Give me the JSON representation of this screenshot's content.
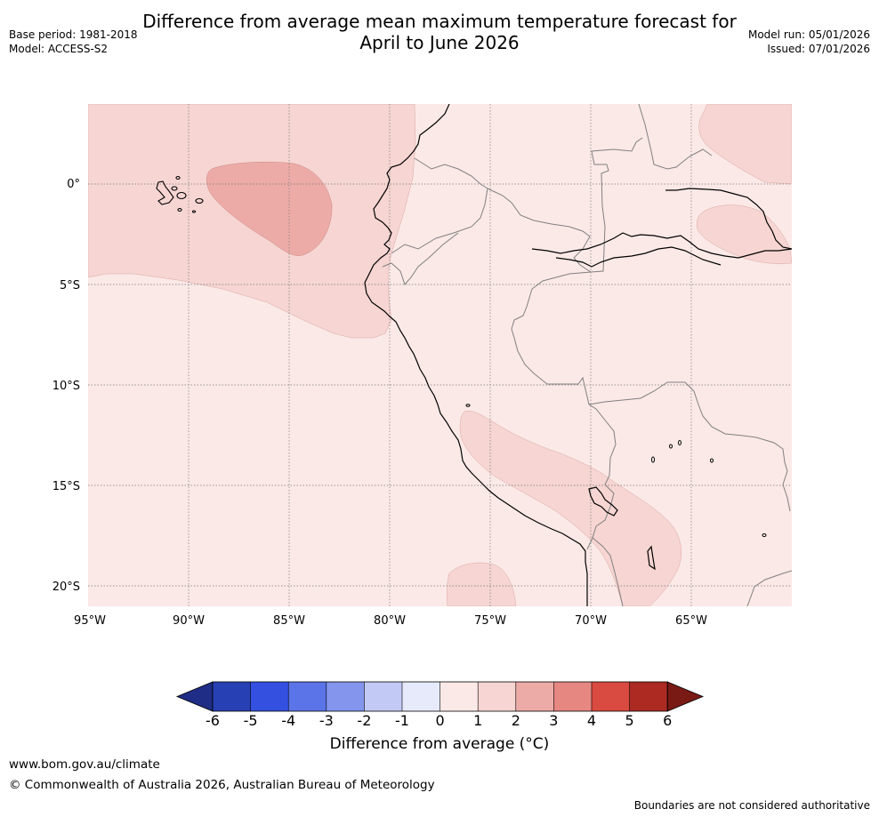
{
  "title": {
    "line1": "Difference from average mean maximum temperature forecast for",
    "line2": "April to June 2026"
  },
  "meta_left": {
    "base_period": "Base period: 1981-2018",
    "model": "Model: ACCESS-S2"
  },
  "meta_right": {
    "model_run": "Model run: 05/01/2026",
    "issued": "Issued: 07/01/2026"
  },
  "map": {
    "lon_labels": [
      "95°W",
      "90°W",
      "85°W",
      "80°W",
      "75°W",
      "70°W",
      "65°W"
    ],
    "lat_labels": [
      "0°",
      "5°S",
      "10°S",
      "15°S",
      "20°S"
    ],
    "fill_colors": {
      "anom_0_1": "#fbe9e7",
      "anom_1_2": "#f6d5d2",
      "anom_2_3": "#edaba7"
    },
    "coast_color": "#000000",
    "border_color": "#808080"
  },
  "colorbar": {
    "ticks": [
      "-6",
      "-5",
      "-4",
      "-3",
      "-2",
      "-1",
      "0",
      "1",
      "2",
      "3",
      "4",
      "5",
      "6"
    ],
    "colors": [
      "#1f2d86",
      "#2740b3",
      "#3350e0",
      "#5b75e8",
      "#8395ec",
      "#c2c9f5",
      "#e7eafb",
      "#fbe9e7",
      "#f6d5d2",
      "#edaba7",
      "#e68781",
      "#d94a40",
      "#ac2a22",
      "#7a1a15"
    ],
    "label": "Difference from average (°C)"
  },
  "footer": {
    "url": "www.bom.gov.au/climate",
    "copyright": "© Commonwealth of Australia 2026, Australian Bureau of Meteorology",
    "disclaimer": "Boundaries are not considered authoritative"
  }
}
